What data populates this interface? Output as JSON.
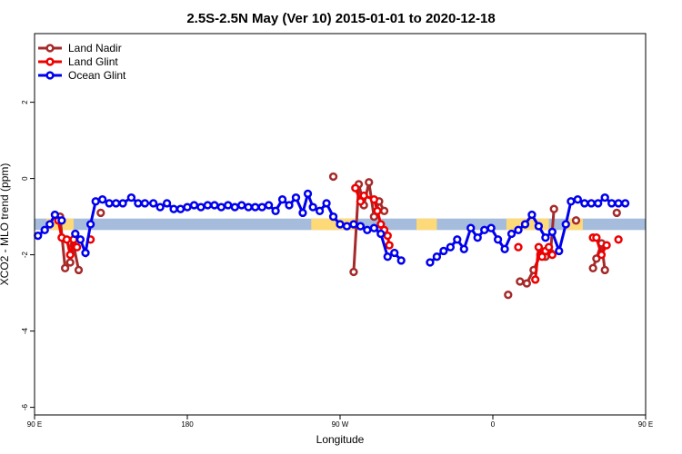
{
  "chart_data": {
    "type": "line",
    "title": "2.5S-2.5N May (Ver 10)   2015-01-01 to 2020-12-18",
    "xlabel": "Longitude",
    "ylabel": "XCO2 - MLO trend (ppm)",
    "xlim": [
      90,
      450
    ],
    "ylim": [
      -6.2,
      3.8
    ],
    "x_ticks": [
      {
        "value": 90,
        "label": "90 E"
      },
      {
        "value": 180,
        "label": "180"
      },
      {
        "value": 270,
        "label": "90 W"
      },
      {
        "value": 360,
        "label": "0"
      },
      {
        "value": 450,
        "label": "90 E"
      }
    ],
    "y_ticks": [
      {
        "value": -6,
        "label": "-6"
      },
      {
        "value": -4,
        "label": "-4"
      },
      {
        "value": -2,
        "label": "-2"
      },
      {
        "value": 0,
        "label": "0"
      },
      {
        "value": 2,
        "label": "2"
      }
    ],
    "legend_position": "top-left",
    "bands": [
      {
        "name": "blue-band",
        "color": "#a5bcdc",
        "y0": -1.35,
        "y1": -1.05,
        "x0": 90,
        "x1": 450
      },
      {
        "name": "yellow-band",
        "color": "#fdd978",
        "y0": -1.35,
        "y1": -1.05,
        "segments": [
          [
            97,
            113
          ],
          [
            253,
            280
          ],
          [
            368,
            393
          ],
          [
            403,
            413
          ],
          [
            315,
            327
          ]
        ]
      }
    ],
    "series": [
      {
        "name": "Land Nadir",
        "color": "#a52a2a",
        "segments": [
          [
            [
              105,
              -1.0
            ],
            [
              108,
              -2.35
            ],
            [
              111,
              -2.2
            ],
            [
              113,
              -1.75
            ],
            [
              116,
              -2.4
            ]
          ],
          [
            [
              129,
              -0.9
            ]
          ],
          [
            [
              266,
              0.05
            ]
          ],
          [
            [
              278,
              -2.45
            ],
            [
              281,
              -0.15
            ],
            [
              284,
              -0.7
            ],
            [
              287,
              -0.1
            ],
            [
              290,
              -1.0
            ],
            [
              293,
              -0.6
            ],
            [
              296,
              -0.85
            ]
          ],
          [
            [
              369,
              -3.05
            ]
          ],
          [
            [
              376,
              -2.7
            ],
            [
              380,
              -2.75
            ],
            [
              384,
              -2.4
            ],
            [
              388,
              -2.0
            ],
            [
              391,
              -2.05
            ],
            [
              394,
              -1.95
            ],
            [
              396,
              -0.8
            ]
          ],
          [
            [
              409,
              -1.1
            ]
          ],
          [
            [
              419,
              -2.35
            ],
            [
              421,
              -2.1
            ],
            [
              424,
              -1.7
            ],
            [
              426,
              -2.4
            ]
          ],
          [
            [
              433,
              -0.9
            ]
          ]
        ]
      },
      {
        "name": "Land Glint",
        "color": "#ee0000",
        "segments": [
          [
            [
              104,
              -1.1
            ],
            [
              106,
              -1.55
            ],
            [
              109,
              -1.6
            ],
            [
              111,
              -2.0
            ],
            [
              113,
              -1.6
            ],
            [
              115,
              -1.8
            ]
          ],
          [
            [
              123,
              -1.6
            ]
          ],
          [
            [
              279,
              -0.25
            ],
            [
              282,
              -0.6
            ],
            [
              284,
              -0.45
            ],
            [
              290,
              -0.55
            ],
            [
              292,
              -0.85
            ],
            [
              294,
              -1.2
            ],
            [
              296,
              -1.35
            ],
            [
              298,
              -1.5
            ],
            [
              299,
              -1.75
            ]
          ],
          [
            [
              375,
              -1.8
            ]
          ],
          [
            [
              385,
              -2.65
            ],
            [
              387,
              -1.8
            ],
            [
              389,
              -2.05
            ],
            [
              391,
              -1.9
            ],
            [
              393,
              -1.8
            ],
            [
              395,
              -2.0
            ]
          ],
          [
            [
              419,
              -1.55
            ],
            [
              421,
              -1.55
            ],
            [
              424,
              -2.0
            ],
            [
              427,
              -1.75
            ]
          ],
          [
            [
              434,
              -1.6
            ]
          ]
        ]
      },
      {
        "name": "Ocean Glint",
        "color": "#0000ee",
        "segments": [
          [
            [
              92,
              -1.5
            ],
            [
              96,
              -1.35
            ],
            [
              99,
              -1.2
            ],
            [
              102,
              -0.95
            ],
            [
              106,
              -1.1
            ]
          ],
          [
            [
              114,
              -1.45
            ],
            [
              117,
              -1.6
            ],
            [
              120,
              -1.95
            ],
            [
              123,
              -1.2
            ],
            [
              126,
              -0.6
            ],
            [
              130,
              -0.55
            ],
            [
              134,
              -0.65
            ],
            [
              138,
              -0.65
            ],
            [
              142,
              -0.65
            ],
            [
              147,
              -0.5
            ],
            [
              151,
              -0.65
            ],
            [
              155,
              -0.65
            ],
            [
              160,
              -0.65
            ],
            [
              164,
              -0.75
            ],
            [
              168,
              -0.65
            ],
            [
              172,
              -0.8
            ],
            [
              176,
              -0.8
            ],
            [
              180,
              -0.75
            ],
            [
              184,
              -0.7
            ],
            [
              188,
              -0.75
            ],
            [
              192,
              -0.7
            ],
            [
              196,
              -0.7
            ],
            [
              200,
              -0.75
            ],
            [
              204,
              -0.7
            ],
            [
              208,
              -0.75
            ],
            [
              212,
              -0.7
            ],
            [
              216,
              -0.75
            ],
            [
              220,
              -0.75
            ],
            [
              224,
              -0.75
            ],
            [
              228,
              -0.7
            ],
            [
              232,
              -0.85
            ],
            [
              236,
              -0.55
            ],
            [
              240,
              -0.7
            ],
            [
              244,
              -0.5
            ],
            [
              248,
              -0.9
            ],
            [
              251,
              -0.4
            ],
            [
              254,
              -0.75
            ],
            [
              258,
              -0.85
            ],
            [
              262,
              -0.65
            ],
            [
              266,
              -1.0
            ],
            [
              270,
              -1.2
            ],
            [
              274,
              -1.25
            ],
            [
              278,
              -1.2
            ],
            [
              282,
              -1.25
            ],
            [
              286,
              -1.35
            ],
            [
              290,
              -1.3
            ],
            [
              294,
              -1.45
            ],
            [
              298,
              -2.05
            ],
            [
              302,
              -1.95
            ],
            [
              306,
              -2.15
            ]
          ],
          [
            [
              323,
              -2.2
            ],
            [
              327,
              -2.05
            ],
            [
              331,
              -1.9
            ],
            [
              335,
              -1.8
            ],
            [
              339,
              -1.6
            ],
            [
              343,
              -1.85
            ],
            [
              347,
              -1.3
            ],
            [
              351,
              -1.55
            ],
            [
              355,
              -1.35
            ],
            [
              359,
              -1.3
            ],
            [
              363,
              -1.6
            ],
            [
              367,
              -1.85
            ],
            [
              371,
              -1.45
            ],
            [
              375,
              -1.35
            ],
            [
              379,
              -1.2
            ],
            [
              383,
              -0.95
            ],
            [
              387,
              -1.25
            ],
            [
              391,
              -1.55
            ],
            [
              395,
              -1.4
            ],
            [
              399,
              -1.9
            ],
            [
              403,
              -1.2
            ],
            [
              406,
              -0.6
            ],
            [
              410,
              -0.55
            ],
            [
              414,
              -0.65
            ],
            [
              418,
              -0.65
            ],
            [
              422,
              -0.65
            ],
            [
              426,
              -0.5
            ],
            [
              430,
              -0.65
            ],
            [
              434,
              -0.65
            ],
            [
              438,
              -0.65
            ]
          ]
        ]
      }
    ]
  }
}
